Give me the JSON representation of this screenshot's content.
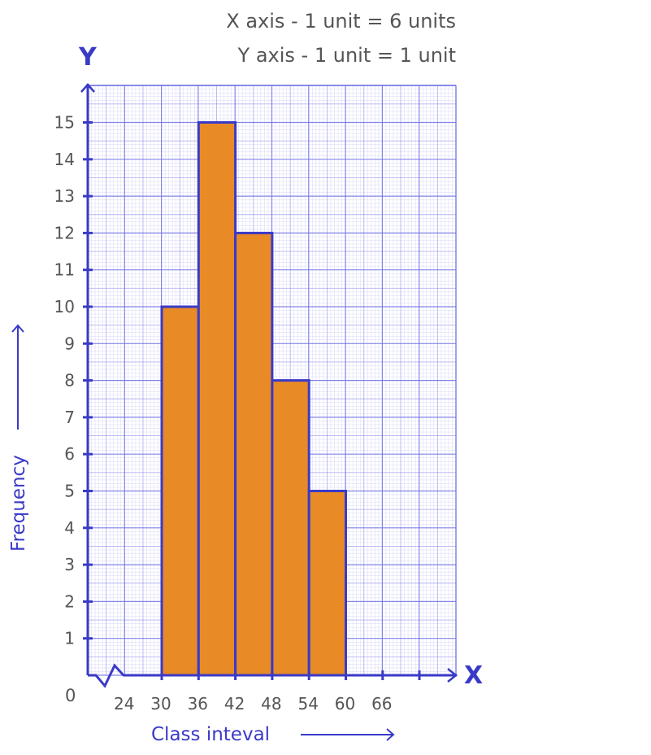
{
  "chart_data": {
    "type": "bar",
    "subtype": "histogram",
    "scale_notes": [
      "X axis - 1 unit = 6 units",
      "Y axis - 1 unit = 1 unit"
    ],
    "xlabel": "Class inteval",
    "ylabel": "Frequency",
    "x_axis_letter": "X",
    "y_axis_letter": "Y",
    "origin_label": "0",
    "x_tick_labels": [
      "24",
      "30",
      "36",
      "42",
      "48",
      "54",
      "60",
      "66"
    ],
    "x_ticks": [
      24,
      30,
      36,
      42,
      48,
      54,
      60,
      66
    ],
    "y_ticks": [
      1,
      2,
      3,
      4,
      5,
      6,
      7,
      8,
      9,
      10,
      11,
      12,
      13,
      14,
      15
    ],
    "y_tick_labels": [
      "1",
      "2",
      "3",
      "4",
      "5",
      "6",
      "7",
      "8",
      "9",
      "10",
      "11",
      "12",
      "13",
      "14",
      "15"
    ],
    "axis_break": true,
    "bins": [
      {
        "from": 30,
        "to": 36,
        "value": 10
      },
      {
        "from": 36,
        "to": 42,
        "value": 15
      },
      {
        "from": 42,
        "to": 48,
        "value": 12
      },
      {
        "from": 48,
        "to": 54,
        "value": 8
      },
      {
        "from": 54,
        "to": 60,
        "value": 5
      }
    ],
    "ylim": [
      0,
      15.5
    ],
    "grid": true,
    "colors": {
      "bar": "#E88B26",
      "axis": "#3A3AC8",
      "grid": "#6E6EE6",
      "text": "#555555"
    }
  }
}
